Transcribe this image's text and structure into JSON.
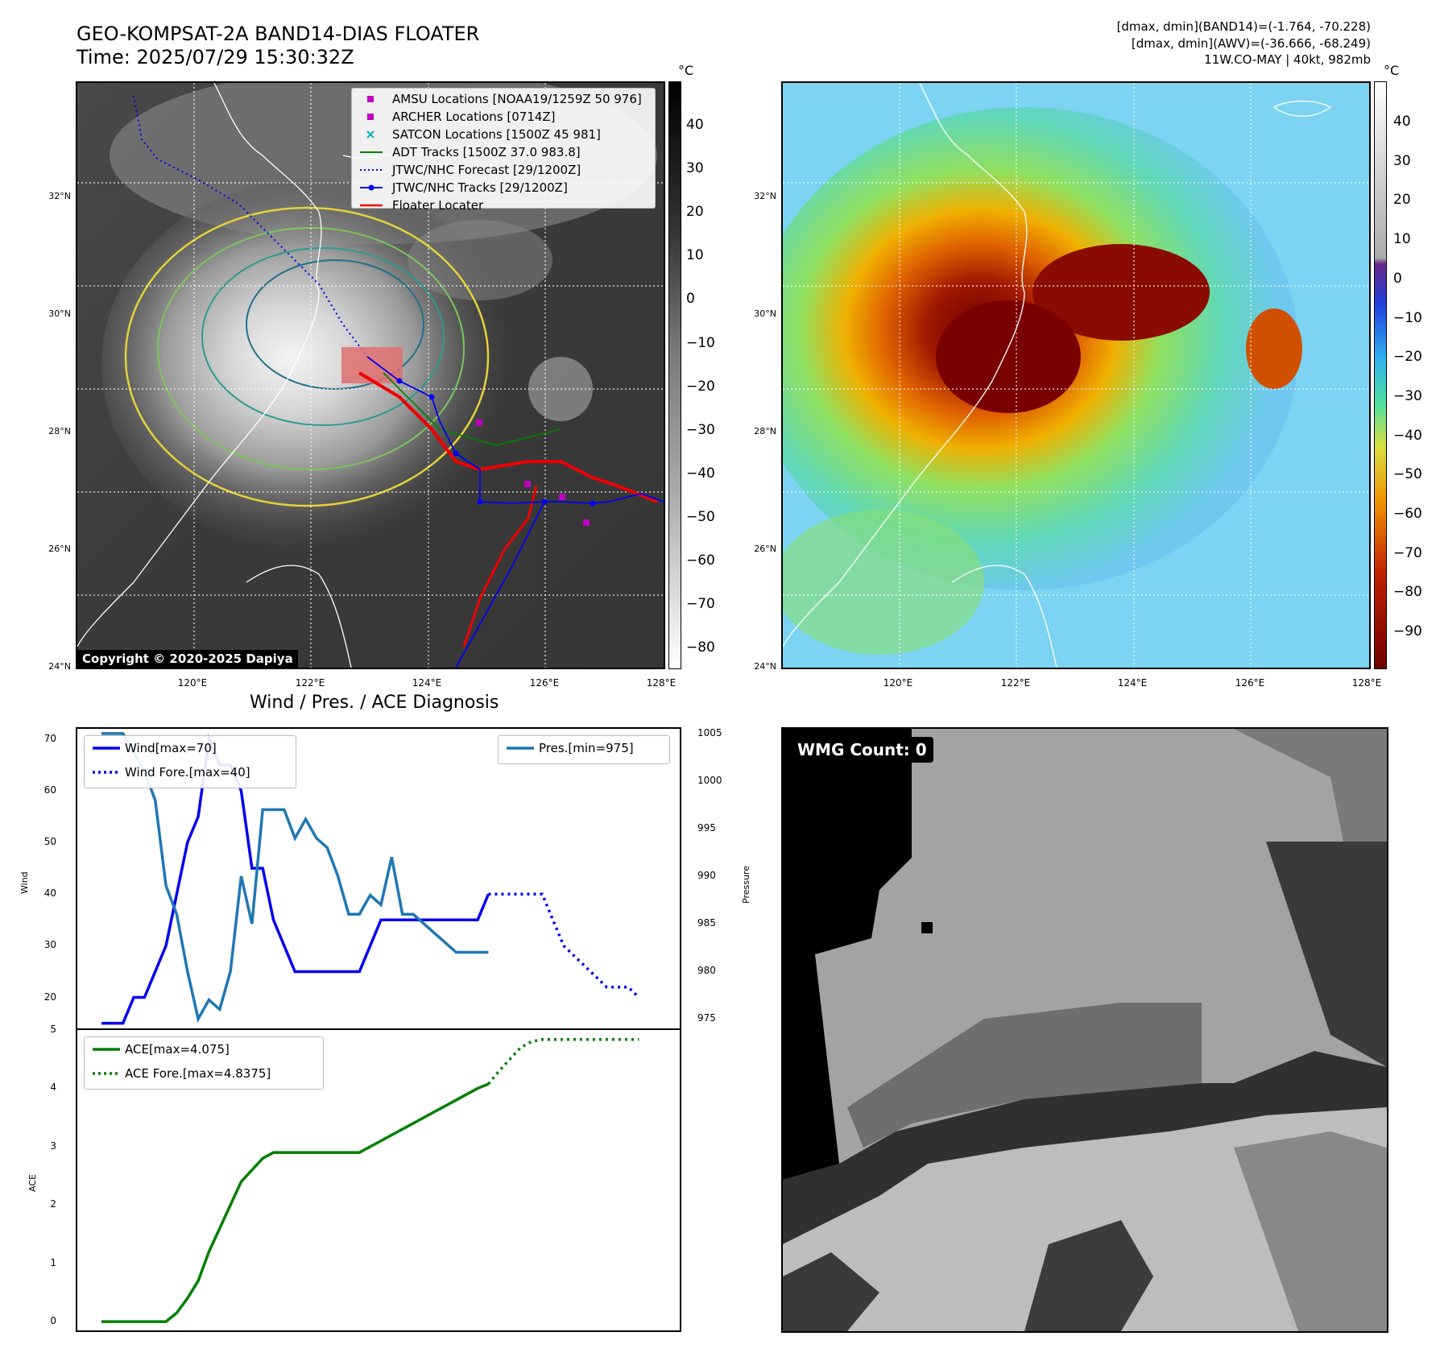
{
  "header": {
    "title_line1": "GEO-KOMPSAT-2A BAND14-DIAS FLOATER",
    "title_line2": "Time: 2025/07/29 15:30:32Z",
    "info_line1": "[dmax, dmin](BAND14)=(-1.764, -70.228)",
    "info_line2": "[dmax, dmin](AWV)=(-36.666, -68.249)",
    "info_line3": "11W.CO-MAY | 40kt, 982mb"
  },
  "map": {
    "lat_labels": [
      "32°N",
      "30°N",
      "28°N",
      "26°N",
      "24°N"
    ],
    "lon_labels": [
      "120°E",
      "122°E",
      "124°E",
      "126°E",
      "128°E"
    ],
    "copyright": "Copyright © 2020-2025 Dapiya",
    "legend": [
      {
        "label": "AMSU Locations [NOAA19/1259Z 50 976]",
        "color": "#c000c0",
        "marker": "square"
      },
      {
        "label": "ARCHER Locations [0714Z]",
        "color": "#c000c0",
        "marker": "square"
      },
      {
        "label": "SATCON Locations [1500Z 45 981]",
        "color": "#10b8b8",
        "marker": "x"
      },
      {
        "label": "ADT Tracks [1500Z 37.0 983.8]",
        "color": "#008000",
        "marker": "line"
      },
      {
        "label": "JTWC/NHC Forecast [29/1200Z]",
        "color": "#0000ee",
        "marker": "dotted"
      },
      {
        "label": "JTWC/NHC Tracks [29/1200Z]",
        "color": "#0000ee",
        "marker": "line-dot"
      },
      {
        "label": "Floater Locater",
        "color": "#ee0000",
        "marker": "line"
      }
    ]
  },
  "colorbar_left": {
    "unit": "°C",
    "ticks": [
      "40",
      "30",
      "20",
      "10",
      "0",
      "−10",
      "−20",
      "−30",
      "−40",
      "−50",
      "−60",
      "−70",
      "−80"
    ]
  },
  "colorbar_right": {
    "unit": "°C",
    "ticks": [
      "40",
      "30",
      "20",
      "10",
      "0",
      "−10",
      "−20",
      "−30",
      "−40",
      "−50",
      "−60",
      "−70",
      "−80",
      "−90"
    ]
  },
  "wmg": {
    "label": "WMG Count: 0"
  },
  "chart_data": [
    {
      "type": "line",
      "title": "Wind / Pres. / ACE Diagnosis",
      "ylabel": "Wind",
      "y2label": "Pressure",
      "ylim": [
        14,
        72
      ],
      "y2lim": [
        974,
        1005.5
      ],
      "yticks": [
        "70",
        "60",
        "50",
        "40",
        "30",
        "20"
      ],
      "y2ticks": [
        "1005",
        "1000",
        "995",
        "990",
        "985",
        "980",
        "975"
      ],
      "x_count": 53,
      "series": [
        {
          "name": "Wind[max=70]",
          "axis": "left",
          "style": "solid",
          "color": "#0000ee",
          "x": [
            0,
            1,
            2,
            3,
            4,
            5,
            6,
            7,
            8,
            9,
            10,
            11,
            12,
            13,
            14,
            15,
            16,
            17,
            18,
            19,
            20,
            21,
            22,
            23,
            24,
            25,
            26,
            27,
            28,
            29,
            30,
            31,
            32,
            33,
            34,
            35,
            36
          ],
          "values": [
            15,
            15,
            15,
            20,
            20,
            25,
            30,
            40,
            50,
            55,
            70,
            65,
            65,
            60,
            45,
            45,
            35,
            30,
            25,
            25,
            25,
            25,
            25,
            25,
            25,
            30,
            35,
            35,
            35,
            35,
            35,
            35,
            35,
            35,
            35,
            35,
            40
          ]
        },
        {
          "name": "Wind Fore.[max=40]",
          "axis": "left",
          "style": "dotted",
          "color": "#0000ee",
          "x": [
            36,
            37,
            38,
            39,
            40,
            41,
            42,
            43,
            44,
            45,
            46,
            47,
            48,
            49,
            50
          ],
          "values": [
            40,
            40,
            40,
            40,
            40,
            40,
            35,
            30,
            28,
            26,
            24,
            22,
            22,
            22,
            20
          ]
        },
        {
          "name": "Pres.[min=975]",
          "axis": "right",
          "style": "solid",
          "color": "#1f77b4",
          "x": [
            0,
            1,
            2,
            3,
            4,
            5,
            6,
            7,
            8,
            9,
            10,
            11,
            12,
            13,
            14,
            15,
            16,
            17,
            18,
            19,
            20,
            21,
            22,
            23,
            24,
            25,
            26,
            27,
            28,
            29,
            30,
            31,
            32,
            33,
            34,
            35,
            36
          ],
          "values": [
            1005,
            1005,
            1005,
            1003,
            1001,
            998,
            989,
            986,
            980,
            975,
            977,
            976,
            980,
            990,
            985,
            997,
            997,
            997,
            994,
            996,
            994,
            993,
            990,
            986,
            986,
            988,
            987,
            992,
            986,
            986,
            985,
            984,
            983,
            982,
            982,
            982,
            982
          ]
        }
      ]
    },
    {
      "type": "line",
      "ylabel": "ACE",
      "ylim": [
        -0.15,
        5.0
      ],
      "yticks": [
        "5",
        "4",
        "3",
        "2",
        "1",
        "0"
      ],
      "x_count": 53,
      "series": [
        {
          "name": "ACE[max=4.075]",
          "style": "solid",
          "color": "#008000",
          "x": [
            0,
            1,
            2,
            3,
            4,
            5,
            6,
            7,
            8,
            9,
            10,
            11,
            12,
            13,
            14,
            15,
            16,
            17,
            18,
            19,
            20,
            21,
            22,
            23,
            24,
            25,
            26,
            27,
            28,
            29,
            30,
            31,
            32,
            33,
            34,
            35,
            36
          ],
          "values": [
            0,
            0,
            0,
            0,
            0,
            0,
            0,
            0.15,
            0.4,
            0.7,
            1.2,
            1.6,
            2.0,
            2.4,
            2.6,
            2.8,
            2.9,
            2.9,
            2.9,
            2.9,
            2.9,
            2.9,
            2.9,
            2.9,
            2.9,
            3.0,
            3.1,
            3.2,
            3.3,
            3.4,
            3.5,
            3.6,
            3.7,
            3.8,
            3.9,
            4.0,
            4.075
          ]
        },
        {
          "name": "ACE Fore.[max=4.8375]",
          "style": "dotted",
          "color": "#008000",
          "x": [
            36,
            37,
            38,
            39,
            40,
            41,
            42,
            43,
            44,
            45,
            46,
            47,
            48,
            49,
            50
          ],
          "values": [
            4.075,
            4.3,
            4.5,
            4.7,
            4.8,
            4.8375,
            4.8375,
            4.8375,
            4.8375,
            4.8375,
            4.8375,
            4.8375,
            4.8375,
            4.8375,
            4.8375
          ]
        }
      ]
    }
  ]
}
